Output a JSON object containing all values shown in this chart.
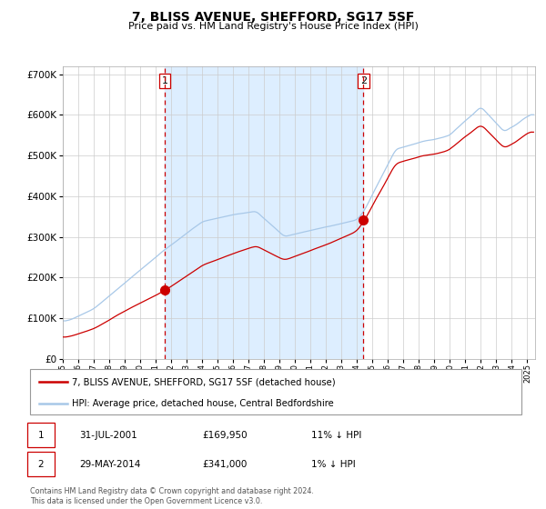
{
  "title": "7, BLISS AVENUE, SHEFFORD, SG17 5SF",
  "subtitle": "Price paid vs. HM Land Registry's House Price Index (HPI)",
  "legend_line1": "7, BLISS AVENUE, SHEFFORD, SG17 5SF (detached house)",
  "legend_line2": "HPI: Average price, detached house, Central Bedfordshire",
  "table_row1": [
    "1",
    "31-JUL-2001",
    "£169,950",
    "11% ↓ HPI"
  ],
  "table_row2": [
    "2",
    "29-MAY-2014",
    "£341,000",
    "1% ↓ HPI"
  ],
  "footnote": "Contains HM Land Registry data © Crown copyright and database right 2024.\nThis data is licensed under the Open Government Licence v3.0.",
  "vline1_x": 2001.58,
  "vline2_x": 2014.41,
  "marker1_x": 2001.58,
  "marker1_y": 169950,
  "marker2_x": 2014.41,
  "marker2_y": 341000,
  "hpi_color": "#a8c8e8",
  "price_color": "#cc0000",
  "vline_color": "#cc0000",
  "bg_color": "#ddeeff",
  "ylim": [
    0,
    720000
  ],
  "xlim": [
    1995.0,
    2025.5
  ],
  "yticks": [
    0,
    100000,
    200000,
    300000,
    400000,
    500000,
    600000,
    700000
  ],
  "ytick_labels": [
    "£0",
    "£100K",
    "£200K",
    "£300K",
    "£400K",
    "£500K",
    "£600K",
    "£700K"
  ]
}
